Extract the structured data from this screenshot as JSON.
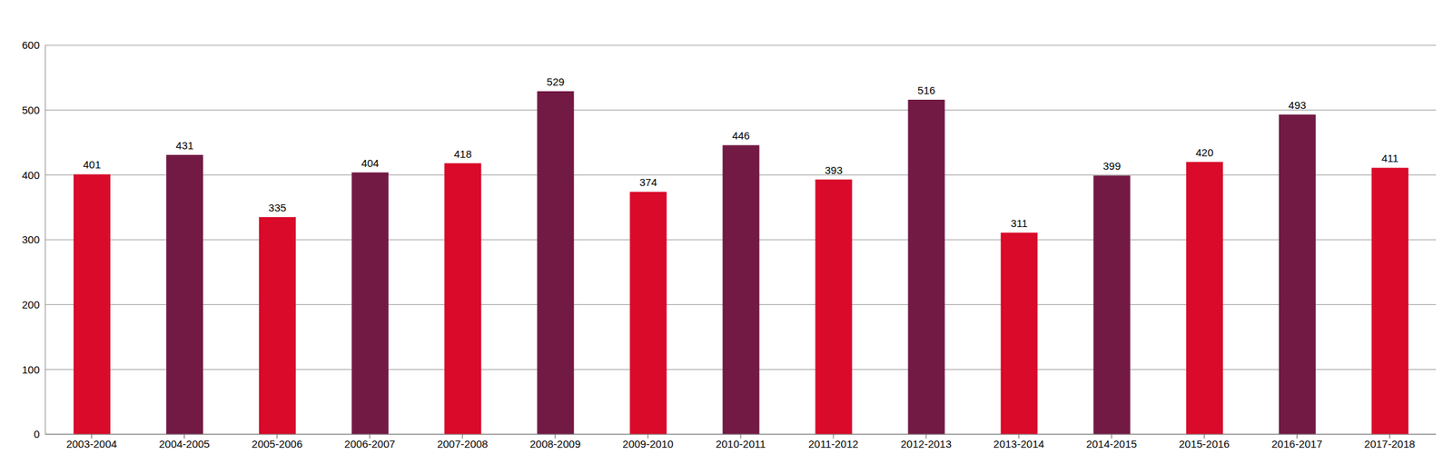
{
  "chart_data": {
    "type": "bar",
    "categories": [
      "2003-2004",
      "2004-2005",
      "2005-2006",
      "2006-2007",
      "2007-2008",
      "2008-2009",
      "2009-2010",
      "2010-2011",
      "2011-2012",
      "2012-2013",
      "2013-2014",
      "2014-2015",
      "2015-2016",
      "2016-2017",
      "2017-2018"
    ],
    "values": [
      401,
      431,
      335,
      404,
      418,
      529,
      374,
      446,
      393,
      516,
      311,
      399,
      420,
      493,
      411
    ],
    "colors": [
      "#d90a2a",
      "#721a44",
      "#d90a2a",
      "#721a44",
      "#d90a2a",
      "#721a44",
      "#d90a2a",
      "#721a44",
      "#d90a2a",
      "#721a44",
      "#d90a2a",
      "#721a44",
      "#d90a2a",
      "#721a44",
      "#d90a2a"
    ],
    "ylim": [
      0,
      600
    ],
    "yticks": [
      0,
      100,
      200,
      300,
      400,
      500,
      600
    ],
    "grid": true,
    "data_labels": true
  }
}
